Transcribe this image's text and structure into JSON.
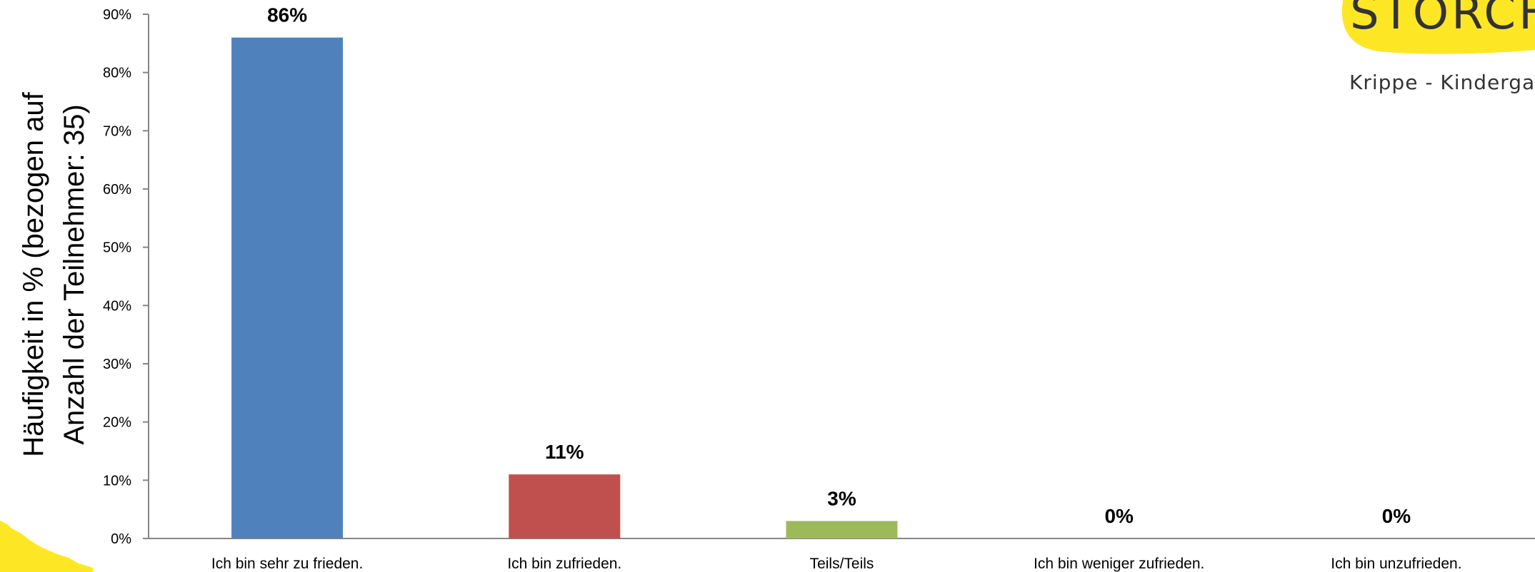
{
  "chart_data": {
    "type": "bar",
    "categories": [
      "Ich bin sehr zu frieden.",
      "Ich bin zufrieden.",
      "Teils/Teils",
      "Ich bin weniger zufrieden.",
      "Ich bin unzufrieden."
    ],
    "values": [
      86,
      11,
      3,
      0,
      0
    ],
    "data_labels": [
      "86%",
      "11%",
      "3%",
      "0%",
      "0%"
    ],
    "colors": [
      "#4f81bd",
      "#c0504d",
      "#9bbb59",
      "#8064a2",
      "#4bacc6"
    ],
    "ylabel_lines": [
      "Häufigkeit in % (bezogen auf",
      "Anzahl der Teilnehmer: 35)"
    ],
    "ylim": [
      0,
      90
    ],
    "yticks": [
      "0%",
      "10%",
      "20%",
      "30%",
      "40%",
      "50%",
      "60%",
      "70%",
      "80%",
      "90%"
    ],
    "grid": false,
    "legend": "none"
  },
  "logo": {
    "name": "STORCHENNEST",
    "tagline": "Krippe - Kindergarten",
    "color": "#fde725"
  }
}
